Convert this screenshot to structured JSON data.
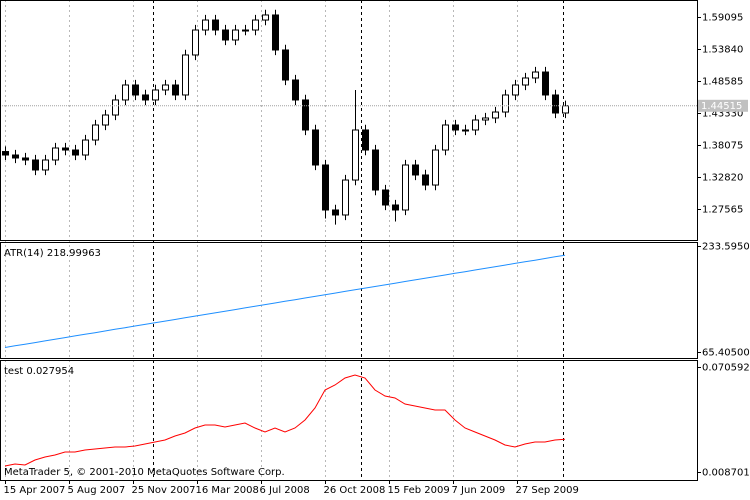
{
  "chart_data": [
    {
      "type": "candlestick",
      "xlim": [
        -0.5,
        69.2
      ],
      "xticks": [
        {
          "value": 0,
          "label": "15 Apr 2007"
        },
        {
          "value": 6.4,
          "label": "5 Aug 2007"
        },
        {
          "value": 12.8,
          "label": "25 Nov 2007"
        },
        {
          "value": 19.2,
          "label": "16 Mar 2008"
        },
        {
          "value": 25.6,
          "label": "6 Jul 2008"
        },
        {
          "value": 32,
          "label": "26 Oct 2008"
        },
        {
          "value": 38.4,
          "label": "15 Feb 2009"
        },
        {
          "value": 44.8,
          "label": "7 Jun 2009"
        },
        {
          "value": 51.2,
          "label": "27 Sep 2009"
        }
      ],
      "xgrid": true,
      "x": [
        0,
        1,
        2,
        3,
        4,
        5,
        6,
        7,
        8,
        9,
        10,
        11,
        12,
        13,
        14,
        15,
        16,
        17,
        18,
        19,
        20,
        21,
        22,
        23,
        24,
        25,
        26,
        27,
        28,
        29,
        30,
        31,
        32,
        33,
        34,
        35,
        36,
        37,
        38,
        39,
        40,
        41,
        42,
        43,
        44,
        45,
        46,
        47,
        48,
        49,
        50,
        51,
        52,
        53,
        54,
        55,
        56
      ],
      "open": [
        1.37,
        1.3643,
        1.3594,
        1.3561,
        1.3397,
        1.3561,
        1.3758,
        1.3725,
        1.3643,
        1.3889,
        1.4136,
        1.43,
        1.4547,
        1.4793,
        1.4629,
        1.4547,
        1.4711,
        1.4793,
        1.4629,
        1.5286,
        1.5696,
        1.586,
        1.5696,
        1.5532,
        1.5696,
        1.5696,
        1.586,
        1.5943,
        1.5368,
        1.4875,
        1.4547,
        1.4054,
        1.3479,
        1.274,
        1.2658,
        1.3232,
        1.4054,
        1.3725,
        1.3068,
        1.2822,
        1.274,
        1.3479,
        1.3315,
        1.315,
        1.3725,
        1.4136,
        1.4054,
        1.4054,
        1.4218,
        1.4251,
        1.4349,
        1.4629,
        1.4793,
        1.4908,
        1.5006,
        1.4629,
        1.4333
      ],
      "high": [
        1.3785,
        1.3728,
        1.3679,
        1.3646,
        1.3646,
        1.3843,
        1.3843,
        1.381,
        1.3974,
        1.4221,
        1.4385,
        1.4632,
        1.4878,
        1.4878,
        1.4714,
        1.4796,
        1.4878,
        1.4878,
        1.5371,
        1.5781,
        1.5945,
        1.5945,
        1.5781,
        1.5781,
        1.5781,
        1.5945,
        1.6028,
        1.6028,
        1.5453,
        1.496,
        1.4632,
        1.4139,
        1.3564,
        1.2825,
        1.3317,
        1.4711,
        1.4139,
        1.381,
        1.3153,
        1.2907,
        1.3564,
        1.3564,
        1.34,
        1.381,
        1.4221,
        1.4221,
        1.4139,
        1.4303,
        1.4336,
        1.4434,
        1.4714,
        1.4878,
        1.4993,
        1.5091,
        1.5091,
        1.4714,
        1.4537
      ],
      "low": [
        1.356,
        1.3509,
        1.3476,
        1.3312,
        1.3312,
        1.3476,
        1.364,
        1.3558,
        1.3558,
        1.3804,
        1.4051,
        1.4215,
        1.4462,
        1.4544,
        1.4462,
        1.4462,
        1.4626,
        1.4544,
        1.4544,
        1.5201,
        1.5611,
        1.5611,
        1.5447,
        1.5447,
        1.5611,
        1.5611,
        1.5775,
        1.5283,
        1.479,
        1.4462,
        1.3969,
        1.3394,
        1.26,
        1.25,
        1.2573,
        1.3147,
        1.364,
        1.2983,
        1.2737,
        1.255,
        1.2655,
        1.323,
        1.3065,
        1.3065,
        1.364,
        1.3969,
        1.3969,
        1.3969,
        1.4133,
        1.4166,
        1.4264,
        1.4544,
        1.4708,
        1.4823,
        1.4544,
        1.4248,
        1.4248
      ],
      "close": [
        1.3643,
        1.3594,
        1.3561,
        1.3397,
        1.3561,
        1.3758,
        1.3725,
        1.3643,
        1.3889,
        1.4136,
        1.43,
        1.4547,
        1.4793,
        1.4629,
        1.4547,
        1.4711,
        1.4793,
        1.4629,
        1.5286,
        1.5696,
        1.586,
        1.5696,
        1.5532,
        1.5696,
        1.5696,
        1.586,
        1.5943,
        1.5368,
        1.4875,
        1.4547,
        1.4054,
        1.3479,
        1.274,
        1.2658,
        1.3232,
        1.4054,
        1.3725,
        1.3068,
        1.2822,
        1.274,
        1.3479,
        1.3315,
        1.315,
        1.3725,
        1.4136,
        1.4054,
        1.4054,
        1.4218,
        1.4251,
        1.4349,
        1.4629,
        1.4793,
        1.4908,
        1.5006,
        1.4629,
        1.4333,
        1.44515
      ],
      "ylim": [
        1.2247,
        1.6189
      ],
      "yticks": [
        1.59095,
        {
          "value": 1.5384,
          "label": "1.53840"
        },
        1.48585,
        {
          "value": 1.4333,
          "label": "1.43330"
        },
        1.38075,
        {
          "value": 1.3282,
          "label": "1.32820"
        },
        1.27565
      ]
    },
    {
      "type": "line",
      "series": [
        {
          "name": "ATR(14)",
          "color": "#1e8fff",
          "values": [
            72.6,
            75.2,
            77.8,
            80.4,
            83.1,
            85.7,
            88.3,
            90.9,
            93.5,
            96.1,
            98.7,
            101.4,
            104.0,
            106.6,
            109.2,
            111.8,
            114.4,
            117.0,
            119.7,
            122.3,
            124.9,
            127.5,
            130.1,
            132.7,
            135.3,
            137.9,
            140.6,
            143.2,
            145.8,
            148.4,
            151.0,
            153.6,
            156.2,
            158.9,
            161.5,
            164.1,
            166.7,
            169.3,
            171.9,
            174.5,
            177.2,
            179.8,
            182.4,
            185.0,
            187.6,
            190.2,
            192.8,
            195.5,
            198.1,
            200.7,
            203.3,
            205.9,
            208.5,
            211.1,
            213.8,
            216.4,
            218.99963
          ]
        }
      ],
      "ylim": [
        55.9,
        239.9
      ],
      "yticks": [
        {
          "value": 233.595,
          "label": "233.59500"
        },
        {
          "value": 65.405,
          "label": "65.40500"
        }
      ]
    },
    {
      "type": "line",
      "series": [
        {
          "name": "test",
          "color": "#ff0000",
          "values": [
            0.01224,
            0.01342,
            0.01283,
            0.01577,
            0.01754,
            0.01872,
            0.02049,
            0.02049,
            0.02167,
            0.02226,
            0.02285,
            0.02344,
            0.02344,
            0.02403,
            0.02521,
            0.02638,
            0.02756,
            0.02992,
            0.03169,
            0.03464,
            0.03641,
            0.03641,
            0.03523,
            0.03641,
            0.03758,
            0.03464,
            0.03228,
            0.03464,
            0.03228,
            0.03464,
            0.03935,
            0.04643,
            0.05704,
            0.05998,
            0.06411,
            0.06588,
            0.06411,
            0.05704,
            0.0535,
            0.05232,
            0.04879,
            0.04761,
            0.04643,
            0.04525,
            0.04525,
            0.03935,
            0.03464,
            0.03228,
            0.02992,
            0.02756,
            0.02462,
            0.02344,
            0.02521,
            0.02638,
            0.02638,
            0.02756,
            0.027954
          ]
        }
      ],
      "ylim": [
        0.003986,
        0.074718
      ],
      "yticks": [
        0.070592,
        0.008701
      ]
    }
  ],
  "footer": "MetaTrader 5, © 2001-2010 MetaQuotes Software Corp."
}
